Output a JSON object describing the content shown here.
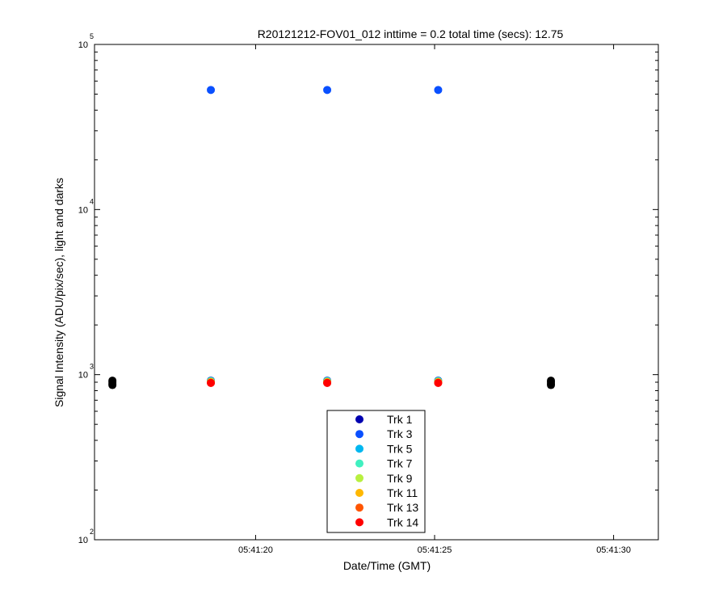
{
  "chart_data": {
    "type": "scatter",
    "title": "R20121212-FOV01_012 inttime = 0.2 total time (secs): 12.75",
    "xlabel": "Date/Time (GMT)",
    "ylabel": "Signal Intensity (ADU/pix/sec), light and darks",
    "xlim": [
      "05:41:15.5",
      "05:41:31.25"
    ],
    "ylim": [
      100,
      100000
    ],
    "yscale": "log",
    "x_ticks": [
      "05:41:20",
      "05:41:25",
      "05:41:30"
    ],
    "y_ticks": [
      {
        "base": "10",
        "exp": "2",
        "value": 100
      },
      {
        "base": "10",
        "exp": "3",
        "value": 1000
      },
      {
        "base": "10",
        "exp": "4",
        "value": 10000
      },
      {
        "base": "10",
        "exp": "5",
        "value": 100000
      }
    ],
    "grid": false,
    "legend_position": "bottom-center",
    "series": [
      {
        "name": "Trk 1",
        "color": "#0000b0",
        "x": [
          "05:41:18.75",
          "05:41:22.0",
          "05:41:25.1"
        ],
        "y": [
          920,
          920,
          920
        ]
      },
      {
        "name": "Trk 3",
        "color": "#0a50ff",
        "x": [
          "05:41:18.75",
          "05:41:22.0",
          "05:41:25.1"
        ],
        "y": [
          53000,
          53000,
          53000
        ]
      },
      {
        "name": "Trk 5",
        "color": "#00b7f0",
        "x": [
          "05:41:18.75",
          "05:41:22.0",
          "05:41:25.1"
        ],
        "y": [
          915,
          915,
          915
        ]
      },
      {
        "name": "Trk 7",
        "color": "#40f0c0",
        "x": [
          "05:41:18.75",
          "05:41:22.0",
          "05:41:25.1"
        ],
        "y": [
          910,
          910,
          910
        ]
      },
      {
        "name": "Trk 9",
        "color": "#b8f040",
        "x": [
          "05:41:18.75",
          "05:41:22.0",
          "05:41:25.1"
        ],
        "y": [
          905,
          905,
          905
        ]
      },
      {
        "name": "Trk 11",
        "color": "#ffb800",
        "x": [
          "05:41:18.75",
          "05:41:22.0",
          "05:41:25.1"
        ],
        "y": [
          900,
          900,
          900
        ]
      },
      {
        "name": "Trk 13",
        "color": "#ff5500",
        "x": [
          "05:41:18.75",
          "05:41:22.0",
          "05:41:25.1"
        ],
        "y": [
          895,
          895,
          895
        ]
      },
      {
        "name": "Trk 14",
        "color": "#ff0000",
        "x": [
          "05:41:18.75",
          "05:41:22.0",
          "05:41:25.1"
        ],
        "y": [
          890,
          890,
          890
        ]
      }
    ],
    "dark_points": {
      "color": "#000000",
      "x": [
        "05:41:16.0",
        "05:41:16.0",
        "05:41:16.0",
        "05:41:16.0",
        "05:41:28.25",
        "05:41:28.25",
        "05:41:28.25",
        "05:41:28.25"
      ],
      "y": [
        920,
        900,
        880,
        865,
        920,
        900,
        880,
        865
      ]
    }
  }
}
